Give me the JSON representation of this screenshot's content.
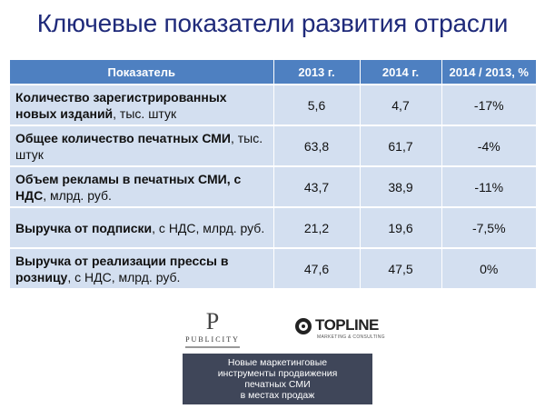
{
  "title": "Ключевые показатели развития отрасли",
  "table": {
    "headers": [
      "Показатель",
      "2013 г.",
      "2014 г.",
      "2014 / 2013, %"
    ],
    "rows": [
      {
        "label_bold": "Количество зарегистрированных новых изданий",
        "label_rest": ", тыс. штук",
        "v2013": "5,6",
        "v2014": "4,7",
        "change": "-17%"
      },
      {
        "label_bold": "Общее количество печатных СМИ",
        "label_rest": ", тыс. штук",
        "v2013": "63,8",
        "v2014": "61,7",
        "change": "-4%"
      },
      {
        "label_bold": "Объем рекламы в печатных СМИ, с НДС",
        "label_rest": ", млрд. руб.",
        "v2013": "43,7",
        "v2014": "38,9",
        "change": "-11%"
      },
      {
        "label_bold": "Выручка от подписки",
        "label_rest": ", с НДС, млрд. руб.",
        "v2013": "21,2",
        "v2014": "19,6",
        "change": "-7,5%"
      },
      {
        "label_bold": "Выручка от реализации прессы в розницу",
        "label_rest": ", с НДС, млрд. руб.",
        "v2013": "47,6",
        "v2014": "47,5",
        "change": "0%"
      }
    ]
  },
  "logos": {
    "publicity_mark": "P",
    "publicity": "PUBLICITY",
    "topline": "TOPLINE",
    "topline_sub": "MARKETING & CONSULTING"
  },
  "banner": {
    "lines": [
      "Новые маркетинговые",
      "инструменты продвижения",
      "печатных СМИ",
      "в местах продаж"
    ]
  }
}
